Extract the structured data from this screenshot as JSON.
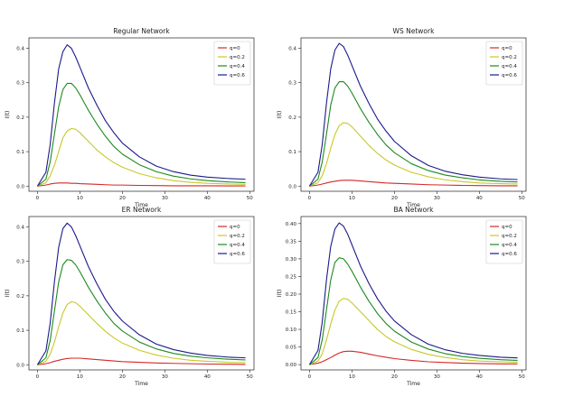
{
  "chart_data": [
    {
      "type": "line",
      "title": "Regular Network",
      "xlabel": "Time",
      "ylabel": "I(t)",
      "xlim": [
        -2,
        51
      ],
      "ylim": [
        -0.015,
        0.43
      ],
      "xticks": [
        0,
        10,
        20,
        30,
        40,
        50
      ],
      "yticks": [
        0.0,
        0.1,
        0.2,
        0.3,
        0.4
      ],
      "ytick_labels": [
        "0.0",
        "0.1",
        "0.2",
        "0.3",
        "0.4"
      ],
      "legend_loc": "top-right",
      "x": [
        0,
        2,
        3,
        4,
        5,
        6,
        7,
        8,
        9,
        10,
        12,
        14,
        16,
        18,
        20,
        24,
        28,
        32,
        36,
        40,
        45,
        49
      ],
      "series": [
        {
          "name": "q=0",
          "color": "#d62728",
          "values": [
            0,
            0.003,
            0.006,
            0.008,
            0.009,
            0.009,
            0.009,
            0.008,
            0.008,
            0.007,
            0.006,
            0.005,
            0.004,
            0.003,
            0.003,
            0.002,
            0.0015,
            0.001,
            0.001,
            0.0008,
            0.0006,
            0.0005
          ]
        },
        {
          "name": "q=0.2",
          "color": "#c8c82a",
          "values": [
            0,
            0.01,
            0.03,
            0.06,
            0.1,
            0.14,
            0.16,
            0.167,
            0.165,
            0.155,
            0.13,
            0.105,
            0.085,
            0.068,
            0.055,
            0.036,
            0.024,
            0.016,
            0.011,
            0.008,
            0.006,
            0.005
          ]
        },
        {
          "name": "q=0.4",
          "color": "#1e8a1e",
          "values": [
            0,
            0.02,
            0.07,
            0.15,
            0.23,
            0.28,
            0.298,
            0.298,
            0.285,
            0.265,
            0.22,
            0.18,
            0.145,
            0.115,
            0.093,
            0.062,
            0.042,
            0.029,
            0.021,
            0.016,
            0.012,
            0.01
          ]
        },
        {
          "name": "q=0.6",
          "color": "#1a1a8c",
          "values": [
            0,
            0.04,
            0.12,
            0.24,
            0.34,
            0.39,
            0.41,
            0.4,
            0.375,
            0.345,
            0.285,
            0.235,
            0.19,
            0.155,
            0.125,
            0.085,
            0.058,
            0.042,
            0.032,
            0.026,
            0.022,
            0.02
          ]
        }
      ]
    },
    {
      "type": "line",
      "title": "WS Network",
      "xlabel": "Time",
      "ylabel": "I(t)",
      "xlim": [
        -2,
        51
      ],
      "ylim": [
        -0.015,
        0.43
      ],
      "xticks": [
        0,
        10,
        20,
        30,
        40,
        50
      ],
      "yticks": [
        0.0,
        0.1,
        0.2,
        0.3,
        0.4
      ],
      "ytick_labels": [
        "0.0",
        "0.1",
        "0.2",
        "0.3",
        "0.4"
      ],
      "legend_loc": "top-right",
      "x": [
        0,
        2,
        3,
        4,
        5,
        6,
        7,
        8,
        9,
        10,
        12,
        14,
        16,
        18,
        20,
        24,
        28,
        32,
        36,
        40,
        45,
        49
      ],
      "series": [
        {
          "name": "q=0",
          "color": "#d62728",
          "values": [
            0,
            0.003,
            0.006,
            0.009,
            0.012,
            0.014,
            0.016,
            0.017,
            0.017,
            0.017,
            0.015,
            0.013,
            0.011,
            0.009,
            0.008,
            0.006,
            0.004,
            0.003,
            0.002,
            0.0015,
            0.001,
            0.001
          ]
        },
        {
          "name": "q=0.2",
          "color": "#c8c82a",
          "values": [
            0,
            0.01,
            0.03,
            0.065,
            0.11,
            0.15,
            0.175,
            0.184,
            0.182,
            0.172,
            0.145,
            0.118,
            0.095,
            0.076,
            0.061,
            0.04,
            0.027,
            0.018,
            0.013,
            0.009,
            0.007,
            0.006
          ]
        },
        {
          "name": "q=0.4",
          "color": "#1e8a1e",
          "values": [
            0,
            0.02,
            0.07,
            0.15,
            0.235,
            0.285,
            0.303,
            0.303,
            0.29,
            0.27,
            0.225,
            0.185,
            0.15,
            0.12,
            0.097,
            0.065,
            0.045,
            0.032,
            0.024,
            0.018,
            0.014,
            0.012
          ]
        },
        {
          "name": "q=0.6",
          "color": "#1a1a8c",
          "values": [
            0,
            0.04,
            0.12,
            0.24,
            0.34,
            0.395,
            0.414,
            0.405,
            0.38,
            0.35,
            0.29,
            0.24,
            0.195,
            0.16,
            0.13,
            0.088,
            0.06,
            0.043,
            0.033,
            0.026,
            0.021,
            0.019
          ]
        }
      ]
    },
    {
      "type": "line",
      "title": "ER Network",
      "xlabel": "Time",
      "ylabel": "I(t)",
      "xlim": [
        -2,
        51
      ],
      "ylim": [
        -0.015,
        0.43
      ],
      "xticks": [
        0,
        10,
        20,
        30,
        40,
        50
      ],
      "yticks": [
        0.0,
        0.1,
        0.2,
        0.3,
        0.4
      ],
      "ytick_labels": [
        "0.0",
        "0.1",
        "0.2",
        "0.3",
        "0.4"
      ],
      "legend_loc": "top-right",
      "x": [
        0,
        2,
        3,
        4,
        5,
        6,
        7,
        8,
        9,
        10,
        12,
        14,
        16,
        18,
        20,
        24,
        28,
        32,
        36,
        40,
        45,
        49
      ],
      "series": [
        {
          "name": "q=0",
          "color": "#d62728",
          "values": [
            0,
            0.003,
            0.006,
            0.01,
            0.013,
            0.016,
            0.018,
            0.019,
            0.019,
            0.019,
            0.017,
            0.015,
            0.013,
            0.011,
            0.009,
            0.007,
            0.005,
            0.004,
            0.003,
            0.002,
            0.0015,
            0.001
          ]
        },
        {
          "name": "q=0.2",
          "color": "#c8c82a",
          "values": [
            0,
            0.01,
            0.03,
            0.065,
            0.11,
            0.15,
            0.175,
            0.183,
            0.18,
            0.17,
            0.145,
            0.12,
            0.097,
            0.078,
            0.063,
            0.042,
            0.028,
            0.019,
            0.013,
            0.01,
            0.007,
            0.006
          ]
        },
        {
          "name": "q=0.4",
          "color": "#1e8a1e",
          "values": [
            0,
            0.02,
            0.07,
            0.155,
            0.24,
            0.29,
            0.305,
            0.303,
            0.29,
            0.27,
            0.225,
            0.185,
            0.15,
            0.12,
            0.098,
            0.066,
            0.046,
            0.033,
            0.025,
            0.02,
            0.016,
            0.014
          ]
        },
        {
          "name": "q=0.6",
          "color": "#1a1a8c",
          "values": [
            0,
            0.04,
            0.12,
            0.24,
            0.34,
            0.395,
            0.411,
            0.4,
            0.375,
            0.345,
            0.285,
            0.235,
            0.19,
            0.155,
            0.127,
            0.087,
            0.06,
            0.044,
            0.034,
            0.027,
            0.022,
            0.02
          ]
        }
      ]
    },
    {
      "type": "line",
      "title": "BA Network",
      "xlabel": "Time",
      "ylabel": "I(t)",
      "xlim": [
        -2,
        51
      ],
      "ylim": [
        -0.015,
        0.42
      ],
      "xticks": [
        0,
        10,
        20,
        30,
        40,
        50
      ],
      "yticks": [
        0.0,
        0.05,
        0.1,
        0.15,
        0.2,
        0.25,
        0.3,
        0.35,
        0.4
      ],
      "ytick_labels": [
        "0.00",
        "0.05",
        "0.10",
        "0.15",
        "0.20",
        "0.25",
        "0.30",
        "0.35",
        "0.40"
      ],
      "legend_loc": "top-right",
      "x": [
        0,
        2,
        3,
        4,
        5,
        6,
        7,
        8,
        9,
        10,
        12,
        14,
        16,
        18,
        20,
        24,
        28,
        32,
        36,
        40,
        45,
        49
      ],
      "series": [
        {
          "name": "q=0",
          "color": "#d62728",
          "values": [
            0,
            0.004,
            0.008,
            0.014,
            0.02,
            0.027,
            0.033,
            0.037,
            0.038,
            0.038,
            0.035,
            0.03,
            0.025,
            0.021,
            0.017,
            0.012,
            0.008,
            0.006,
            0.004,
            0.003,
            0.002,
            0.002
          ]
        },
        {
          "name": "q=0.2",
          "color": "#c8c82a",
          "values": [
            0,
            0.01,
            0.03,
            0.07,
            0.115,
            0.155,
            0.18,
            0.188,
            0.185,
            0.175,
            0.15,
            0.125,
            0.1,
            0.08,
            0.065,
            0.043,
            0.029,
            0.02,
            0.014,
            0.01,
            0.008,
            0.007
          ]
        },
        {
          "name": "q=0.4",
          "color": "#1e8a1e",
          "values": [
            0,
            0.02,
            0.07,
            0.155,
            0.24,
            0.29,
            0.303,
            0.3,
            0.285,
            0.265,
            0.22,
            0.18,
            0.145,
            0.117,
            0.095,
            0.064,
            0.044,
            0.031,
            0.023,
            0.018,
            0.014,
            0.012
          ]
        },
        {
          "name": "q=0.6",
          "color": "#1a1a8c",
          "values": [
            0,
            0.04,
            0.12,
            0.24,
            0.335,
            0.385,
            0.402,
            0.393,
            0.37,
            0.34,
            0.28,
            0.23,
            0.187,
            0.152,
            0.124,
            0.085,
            0.058,
            0.042,
            0.032,
            0.026,
            0.021,
            0.019
          ]
        }
      ]
    }
  ]
}
